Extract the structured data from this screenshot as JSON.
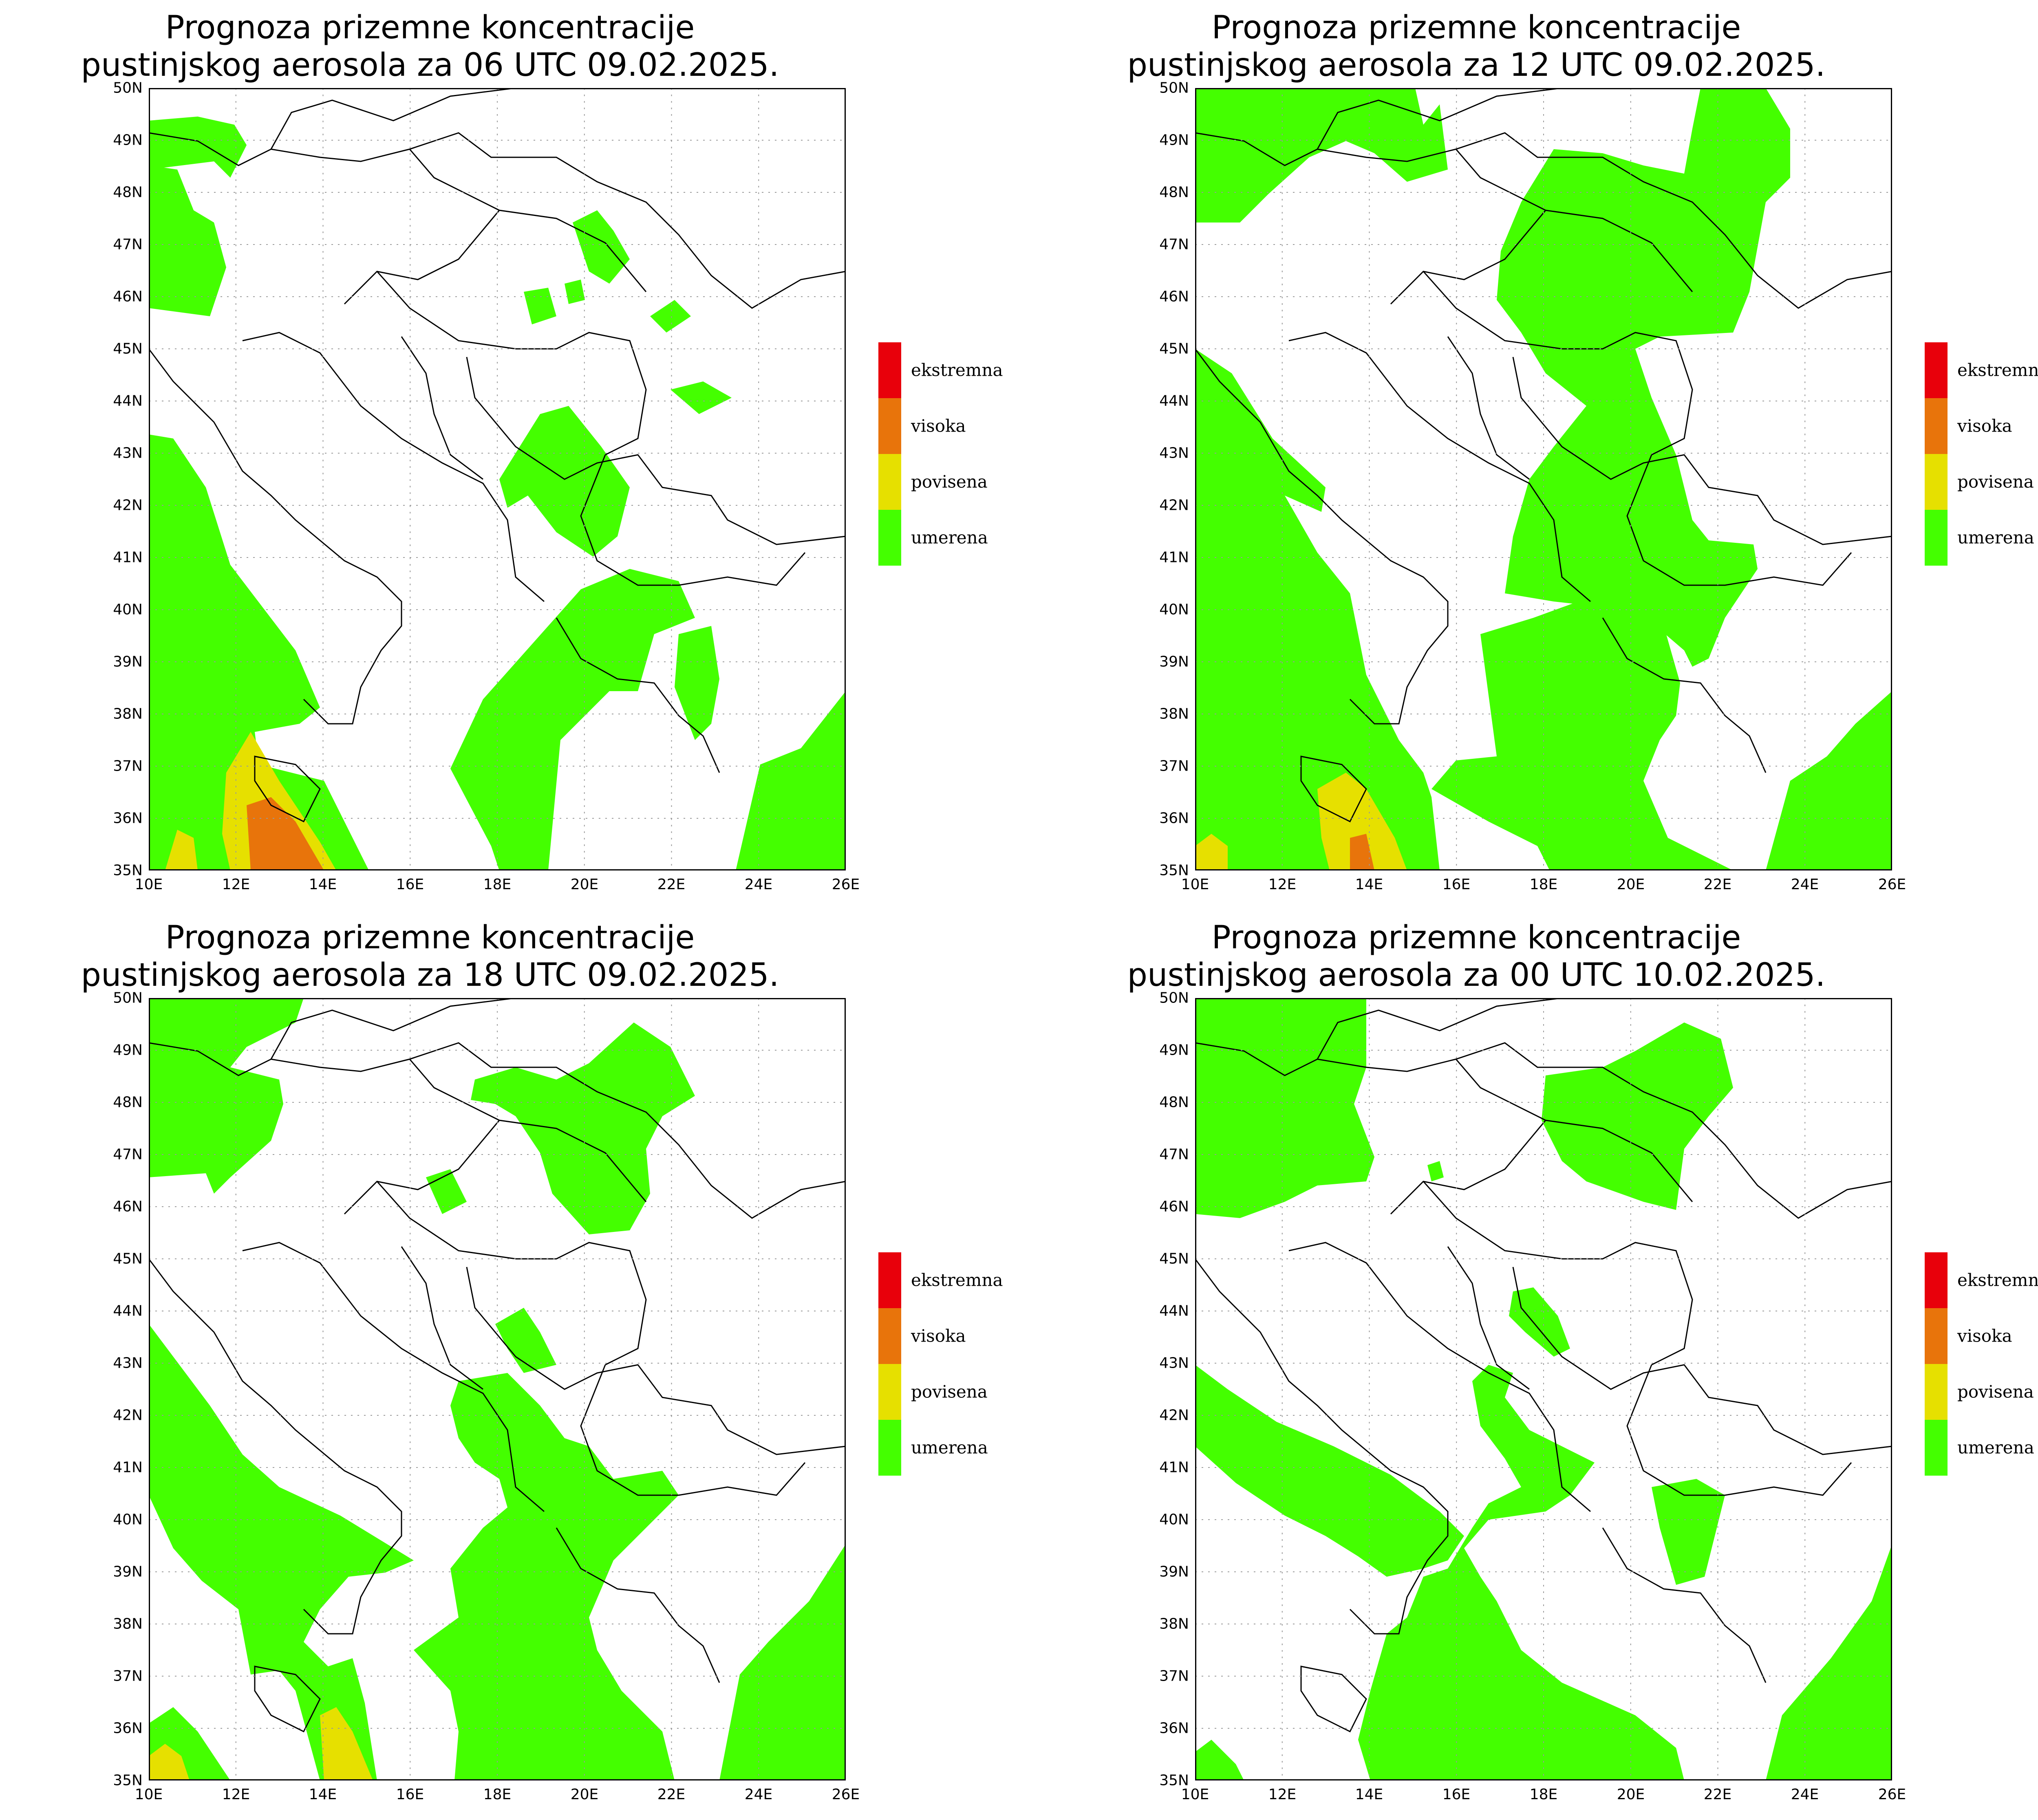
{
  "colors": {
    "ekstremna": "#e8000b",
    "visoka": "#e8740b",
    "povisena": "#e6e000",
    "umerena": "#44ff00",
    "border": "#000000",
    "grid": "#999999"
  },
  "axes": {
    "lat_labels": [
      "50N",
      "49N",
      "48N",
      "47N",
      "46N",
      "45N",
      "44N",
      "43N",
      "42N",
      "41N",
      "40N",
      "39N",
      "38N",
      "37N",
      "36N",
      "35N"
    ],
    "lon_labels": [
      "10E",
      "12E",
      "14E",
      "16E",
      "18E",
      "20E",
      "22E",
      "24E",
      "26E"
    ],
    "lon_range": [
      10,
      26
    ],
    "lat_range": [
      35,
      50
    ]
  },
  "legend": {
    "items": [
      {
        "label": "ekstremna",
        "color": "#e8000b"
      },
      {
        "label": "visoka",
        "color": "#e8740b"
      },
      {
        "label": "povisena",
        "color": "#e6e000"
      },
      {
        "label": "umerena",
        "color": "#44ff00"
      }
    ]
  },
  "panels": [
    {
      "title_line1": "Prognoza prizemne koncentracije",
      "title_line2": "pustinjskog aerosola za 06 UTC 09.02.2025."
    },
    {
      "title_line1": "Prognoza prizemne koncentracije",
      "title_line2": "pustinjskog aerosola za 12 UTC 09.02.2025."
    },
    {
      "title_line1": "Prognoza prizemne koncentracije",
      "title_line2": "pustinjskog aerosola za 18 UTC 09.02.2025."
    },
    {
      "title_line1": "Prognoza prizemne koncentracije",
      "title_line2": "pustinjskog aerosola za 00 UTC 10.02.2025."
    }
  ]
}
